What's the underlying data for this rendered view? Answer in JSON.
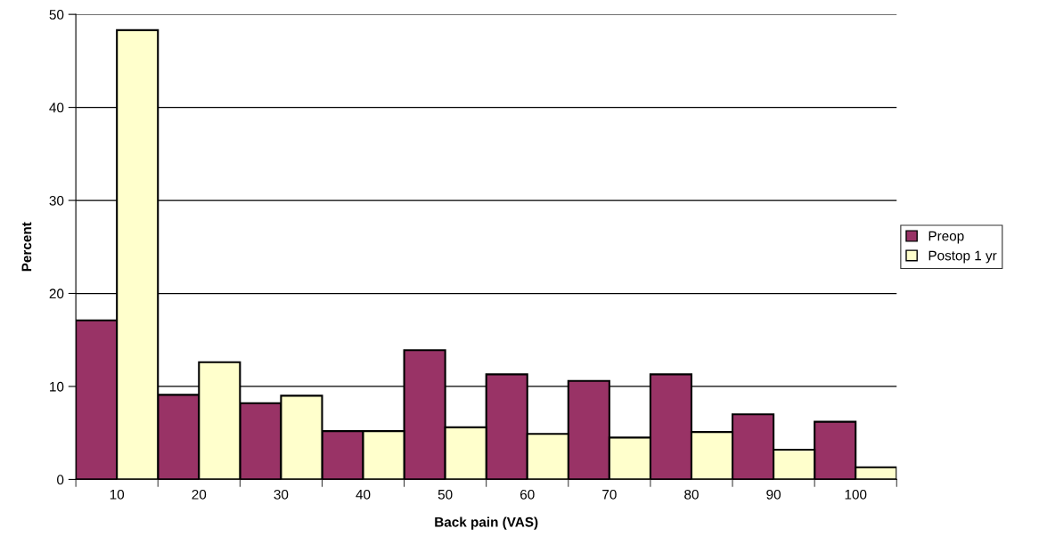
{
  "chart_data": {
    "type": "bar",
    "xlabel": "Back pain (VAS)",
    "ylabel": "Percent",
    "categories": [
      "10",
      "20",
      "30",
      "40",
      "50",
      "60",
      "70",
      "80",
      "90",
      "100"
    ],
    "series": [
      {
        "name": "Preop",
        "color": "#993366",
        "values": [
          17.1,
          9.1,
          8.2,
          5.2,
          13.9,
          11.3,
          10.6,
          11.3,
          7.0,
          6.2
        ]
      },
      {
        "name": "Postop 1 yr",
        "color": "#ffffcc",
        "values": [
          48.3,
          12.6,
          9.0,
          5.2,
          5.6,
          4.9,
          4.5,
          5.1,
          3.2,
          1.3
        ]
      }
    ],
    "ylim": [
      0,
      50
    ],
    "yticks": [
      0,
      10,
      20,
      30,
      40,
      50
    ],
    "grid": "y",
    "legend": "right"
  }
}
